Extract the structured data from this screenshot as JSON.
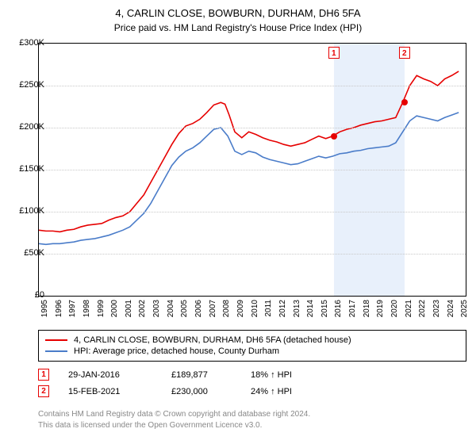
{
  "title": "4, CARLIN CLOSE, BOWBURN, DURHAM, DH6 5FA",
  "subtitle": "Price paid vs. HM Land Registry's House Price Index (HPI)",
  "chart": {
    "type": "line",
    "background_color": "#ffffff",
    "grid_color": "#c8c8c8",
    "band_color": "#e8f0fb",
    "border_color": "#000000",
    "xlim": [
      1995,
      2025.5
    ],
    "ylim": [
      0,
      300
    ],
    "y_ticks": [
      0,
      50,
      100,
      150,
      200,
      250,
      300
    ],
    "y_tick_labels": [
      "£0",
      "£50K",
      "£100K",
      "£150K",
      "£200K",
      "£250K",
      "£300K"
    ],
    "x_ticks": [
      1995,
      1996,
      1997,
      1998,
      1999,
      2000,
      2001,
      2002,
      2003,
      2004,
      2005,
      2006,
      2007,
      2008,
      2009,
      2010,
      2011,
      2012,
      2013,
      2014,
      2015,
      2016,
      2017,
      2018,
      2019,
      2020,
      2021,
      2022,
      2023,
      2024,
      2025
    ],
    "tick_fontsize": 11,
    "series": [
      {
        "name": "4, CARLIN CLOSE, BOWBURN, DURHAM, DH6 5FA (detached house)",
        "color": "#e60000",
        "line_width": 1.6,
        "data": [
          [
            1995,
            78
          ],
          [
            1995.5,
            77
          ],
          [
            1996,
            77
          ],
          [
            1996.5,
            76
          ],
          [
            1997,
            78
          ],
          [
            1997.5,
            79
          ],
          [
            1998,
            82
          ],
          [
            1998.5,
            84
          ],
          [
            1999,
            85
          ],
          [
            1999.5,
            86
          ],
          [
            2000,
            90
          ],
          [
            2000.5,
            93
          ],
          [
            2001,
            95
          ],
          [
            2001.5,
            100
          ],
          [
            2002,
            110
          ],
          [
            2002.5,
            120
          ],
          [
            2003,
            135
          ],
          [
            2003.5,
            150
          ],
          [
            2004,
            165
          ],
          [
            2004.5,
            180
          ],
          [
            2005,
            193
          ],
          [
            2005.5,
            202
          ],
          [
            2006,
            205
          ],
          [
            2006.5,
            210
          ],
          [
            2007,
            218
          ],
          [
            2007.5,
            227
          ],
          [
            2008,
            230
          ],
          [
            2008.3,
            228
          ],
          [
            2008.6,
            215
          ],
          [
            2009,
            195
          ],
          [
            2009.5,
            188
          ],
          [
            2010,
            195
          ],
          [
            2010.5,
            192
          ],
          [
            2011,
            188
          ],
          [
            2011.5,
            185
          ],
          [
            2012,
            183
          ],
          [
            2012.5,
            180
          ],
          [
            2013,
            178
          ],
          [
            2013.5,
            180
          ],
          [
            2014,
            182
          ],
          [
            2014.5,
            186
          ],
          [
            2015,
            190
          ],
          [
            2015.5,
            187
          ],
          [
            2016,
            190
          ],
          [
            2016.5,
            195
          ],
          [
            2017,
            198
          ],
          [
            2017.5,
            200
          ],
          [
            2018,
            203
          ],
          [
            2018.5,
            205
          ],
          [
            2019,
            207
          ],
          [
            2019.5,
            208
          ],
          [
            2020,
            210
          ],
          [
            2020.5,
            212
          ],
          [
            2021,
            230
          ],
          [
            2021.5,
            250
          ],
          [
            2022,
            262
          ],
          [
            2022.5,
            258
          ],
          [
            2023,
            255
          ],
          [
            2023.5,
            250
          ],
          [
            2024,
            258
          ],
          [
            2024.5,
            262
          ],
          [
            2025,
            267
          ]
        ]
      },
      {
        "name": "HPI: Average price, detached house, County Durham",
        "color": "#4a7cc9",
        "line_width": 1.6,
        "data": [
          [
            1995,
            62
          ],
          [
            1995.5,
            61
          ],
          [
            1996,
            62
          ],
          [
            1996.5,
            62
          ],
          [
            1997,
            63
          ],
          [
            1997.5,
            64
          ],
          [
            1998,
            66
          ],
          [
            1998.5,
            67
          ],
          [
            1999,
            68
          ],
          [
            1999.5,
            70
          ],
          [
            2000,
            72
          ],
          [
            2000.5,
            75
          ],
          [
            2001,
            78
          ],
          [
            2001.5,
            82
          ],
          [
            2002,
            90
          ],
          [
            2002.5,
            98
          ],
          [
            2003,
            110
          ],
          [
            2003.5,
            125
          ],
          [
            2004,
            140
          ],
          [
            2004.5,
            155
          ],
          [
            2005,
            165
          ],
          [
            2005.5,
            172
          ],
          [
            2006,
            176
          ],
          [
            2006.5,
            182
          ],
          [
            2007,
            190
          ],
          [
            2007.5,
            198
          ],
          [
            2008,
            200
          ],
          [
            2008.5,
            190
          ],
          [
            2009,
            172
          ],
          [
            2009.5,
            168
          ],
          [
            2010,
            172
          ],
          [
            2010.5,
            170
          ],
          [
            2011,
            165
          ],
          [
            2011.5,
            162
          ],
          [
            2012,
            160
          ],
          [
            2012.5,
            158
          ],
          [
            2013,
            156
          ],
          [
            2013.5,
            157
          ],
          [
            2014,
            160
          ],
          [
            2014.5,
            163
          ],
          [
            2015,
            166
          ],
          [
            2015.5,
            164
          ],
          [
            2016,
            166
          ],
          [
            2016.5,
            169
          ],
          [
            2017,
            170
          ],
          [
            2017.5,
            172
          ],
          [
            2018,
            173
          ],
          [
            2018.5,
            175
          ],
          [
            2019,
            176
          ],
          [
            2019.5,
            177
          ],
          [
            2020,
            178
          ],
          [
            2020.5,
            182
          ],
          [
            2021,
            195
          ],
          [
            2021.5,
            208
          ],
          [
            2022,
            214
          ],
          [
            2022.5,
            212
          ],
          [
            2023,
            210
          ],
          [
            2023.5,
            208
          ],
          [
            2024,
            212
          ],
          [
            2024.5,
            215
          ],
          [
            2025,
            218
          ]
        ]
      }
    ],
    "sale_markers": [
      {
        "index": "1",
        "x": 2016.08,
        "y": 189.877,
        "color": "#e60000"
      },
      {
        "index": "2",
        "x": 2021.12,
        "y": 230.0,
        "color": "#e60000"
      }
    ]
  },
  "legend": {
    "items": [
      {
        "color": "#e60000",
        "label": "4, CARLIN CLOSE, BOWBURN, DURHAM, DH6 5FA (detached house)"
      },
      {
        "color": "#4a7cc9",
        "label": "HPI: Average price, detached house, County Durham"
      }
    ]
  },
  "sales": [
    {
      "index": "1",
      "color": "#e60000",
      "date": "29-JAN-2016",
      "price": "£189,877",
      "delta": "18% ↑ HPI"
    },
    {
      "index": "2",
      "color": "#e60000",
      "date": "15-FEB-2021",
      "price": "£230,000",
      "delta": "24% ↑ HPI"
    }
  ],
  "footer": {
    "line1": "Contains HM Land Registry data © Crown copyright and database right 2024.",
    "line2": "This data is licensed under the Open Government Licence v3.0."
  }
}
